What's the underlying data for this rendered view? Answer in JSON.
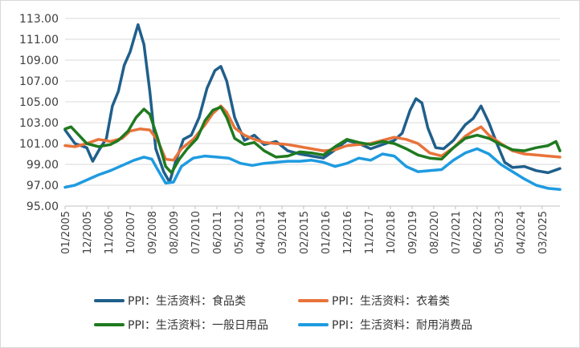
{
  "chart_data": {
    "type": "line",
    "title": "",
    "xlabel": "",
    "ylabel": "",
    "ylim": [
      95,
      113
    ],
    "yticks": [
      "113.00",
      "111.00",
      "109.00",
      "107.00",
      "105.00",
      "103.00",
      "101.00",
      "99.00",
      "97.00",
      "95.00"
    ],
    "xticks": [
      "01/2005",
      "12/2005",
      "11/2006",
      "10/2007",
      "09/2008",
      "08/2009",
      "07/2010",
      "06/2011",
      "05/2012",
      "04/2013",
      "03/2014",
      "02/2015",
      "01/2016",
      "12/2016",
      "11/2017",
      "10/2018",
      "09/2019",
      "08/2020",
      "07/2021",
      "06/2022",
      "05/2023",
      "04/2024",
      "03/2025"
    ],
    "x_range": [
      "2005-01",
      "2025-12"
    ],
    "grid": "horizontal",
    "legend_position": "bottom",
    "series": [
      {
        "name": "PPI：生活资料：食品类",
        "color": "#1f5f8b",
        "points": [
          [
            "2005-01",
            102.3
          ],
          [
            "2005-06",
            101.0
          ],
          [
            "2005-12",
            100.6
          ],
          [
            "2006-03",
            99.3
          ],
          [
            "2006-06",
            100.3
          ],
          [
            "2006-10",
            101.5
          ],
          [
            "2007-01",
            104.6
          ],
          [
            "2007-04",
            106.0
          ],
          [
            "2007-07",
            108.5
          ],
          [
            "2007-10",
            109.8
          ],
          [
            "2008-02",
            112.4
          ],
          [
            "2008-05",
            110.5
          ],
          [
            "2008-08",
            106.0
          ],
          [
            "2008-11",
            100.5
          ],
          [
            "2009-03",
            98.3
          ],
          [
            "2009-06",
            97.3
          ],
          [
            "2009-09",
            99.2
          ],
          [
            "2010-01",
            101.4
          ],
          [
            "2010-05",
            101.8
          ],
          [
            "2010-09",
            103.5
          ],
          [
            "2011-01",
            106.3
          ],
          [
            "2011-05",
            108.0
          ],
          [
            "2011-08",
            108.4
          ],
          [
            "2011-11",
            107.0
          ],
          [
            "2012-03",
            103.5
          ],
          [
            "2012-08",
            101.3
          ],
          [
            "2013-01",
            101.8
          ],
          [
            "2013-06",
            100.9
          ],
          [
            "2013-12",
            101.2
          ],
          [
            "2014-06",
            100.3
          ],
          [
            "2014-12",
            100.0
          ],
          [
            "2015-06",
            99.8
          ],
          [
            "2015-12",
            99.6
          ],
          [
            "2016-06",
            100.4
          ],
          [
            "2016-12",
            101.3
          ],
          [
            "2017-06",
            101.0
          ],
          [
            "2017-12",
            100.5
          ],
          [
            "2018-06",
            100.9
          ],
          [
            "2018-12",
            101.3
          ],
          [
            "2019-04",
            102.0
          ],
          [
            "2019-08",
            104.2
          ],
          [
            "2019-11",
            105.3
          ],
          [
            "2020-02",
            104.9
          ],
          [
            "2020-05",
            102.5
          ],
          [
            "2020-09",
            100.6
          ],
          [
            "2021-01",
            100.5
          ],
          [
            "2021-06",
            101.3
          ],
          [
            "2021-12",
            102.8
          ],
          [
            "2022-04",
            103.4
          ],
          [
            "2022-08",
            104.6
          ],
          [
            "2022-12",
            103.0
          ],
          [
            "2023-04",
            101.0
          ],
          [
            "2023-08",
            99.2
          ],
          [
            "2023-12",
            98.7
          ],
          [
            "2024-06",
            98.8
          ],
          [
            "2024-12",
            98.4
          ],
          [
            "2025-06",
            98.2
          ],
          [
            "2025-12",
            98.6
          ]
        ]
      },
      {
        "name": "PPI：生活资料：衣着类",
        "color": "#e8733a",
        "points": [
          [
            "2005-01",
            100.8
          ],
          [
            "2005-06",
            100.7
          ],
          [
            "2005-12",
            101.0
          ],
          [
            "2006-06",
            101.4
          ],
          [
            "2006-12",
            101.2
          ],
          [
            "2007-06",
            101.5
          ],
          [
            "2007-10",
            102.2
          ],
          [
            "2008-03",
            102.4
          ],
          [
            "2008-08",
            102.3
          ],
          [
            "2008-12",
            101.3
          ],
          [
            "2009-04",
            99.5
          ],
          [
            "2009-08",
            99.4
          ],
          [
            "2009-12",
            100.5
          ],
          [
            "2010-06",
            101.4
          ],
          [
            "2010-12",
            102.8
          ],
          [
            "2011-04",
            103.9
          ],
          [
            "2011-08",
            104.6
          ],
          [
            "2011-11",
            104.0
          ],
          [
            "2012-03",
            102.5
          ],
          [
            "2012-08",
            101.8
          ],
          [
            "2013-01",
            101.4
          ],
          [
            "2013-06",
            101.1
          ],
          [
            "2013-12",
            101.0
          ],
          [
            "2014-06",
            100.9
          ],
          [
            "2014-12",
            100.7
          ],
          [
            "2015-06",
            100.5
          ],
          [
            "2015-12",
            100.3
          ],
          [
            "2016-06",
            100.4
          ],
          [
            "2016-12",
            100.8
          ],
          [
            "2017-06",
            100.9
          ],
          [
            "2017-12",
            101.0
          ],
          [
            "2018-06",
            101.3
          ],
          [
            "2018-12",
            101.6
          ],
          [
            "2019-06",
            101.4
          ],
          [
            "2019-12",
            101.0
          ],
          [
            "2020-06",
            100.1
          ],
          [
            "2020-12",
            99.8
          ],
          [
            "2021-06",
            100.6
          ],
          [
            "2021-12",
            101.7
          ],
          [
            "2022-04",
            102.2
          ],
          [
            "2022-08",
            102.6
          ],
          [
            "2022-12",
            101.8
          ],
          [
            "2023-06",
            101.0
          ],
          [
            "2023-12",
            100.3
          ],
          [
            "2024-06",
            100.0
          ],
          [
            "2024-12",
            99.9
          ],
          [
            "2025-06",
            99.8
          ],
          [
            "2025-12",
            99.7
          ]
        ]
      },
      {
        "name": "PPI：生活资料：一般日用品",
        "color": "#1f7a1f",
        "points": [
          [
            "2005-01",
            102.4
          ],
          [
            "2005-04",
            102.6
          ],
          [
            "2005-08",
            101.8
          ],
          [
            "2005-12",
            101.0
          ],
          [
            "2006-06",
            100.7
          ],
          [
            "2006-12",
            100.9
          ],
          [
            "2007-04",
            101.3
          ],
          [
            "2007-09",
            102.2
          ],
          [
            "2008-01",
            103.5
          ],
          [
            "2008-05",
            104.3
          ],
          [
            "2008-08",
            103.8
          ],
          [
            "2008-12",
            101.5
          ],
          [
            "2009-04",
            98.8
          ],
          [
            "2009-07",
            98.2
          ],
          [
            "2009-11",
            99.5
          ],
          [
            "2010-03",
            100.5
          ],
          [
            "2010-08",
            101.5
          ],
          [
            "2010-12",
            103.2
          ],
          [
            "2011-04",
            104.2
          ],
          [
            "2011-08",
            104.5
          ],
          [
            "2011-11",
            103.5
          ],
          [
            "2012-03",
            101.5
          ],
          [
            "2012-08",
            100.9
          ],
          [
            "2013-01",
            101.1
          ],
          [
            "2013-06",
            100.3
          ],
          [
            "2013-12",
            99.7
          ],
          [
            "2014-06",
            99.8
          ],
          [
            "2014-12",
            100.2
          ],
          [
            "2015-06",
            100.1
          ],
          [
            "2015-12",
            99.9
          ],
          [
            "2016-06",
            100.7
          ],
          [
            "2016-12",
            101.4
          ],
          [
            "2017-06",
            101.1
          ],
          [
            "2017-12",
            100.9
          ],
          [
            "2018-06",
            101.2
          ],
          [
            "2018-12",
            101.0
          ],
          [
            "2019-06",
            100.5
          ],
          [
            "2019-12",
            99.9
          ],
          [
            "2020-06",
            99.6
          ],
          [
            "2020-12",
            99.5
          ],
          [
            "2021-06",
            100.6
          ],
          [
            "2021-12",
            101.5
          ],
          [
            "2022-06",
            101.8
          ],
          [
            "2022-12",
            101.5
          ],
          [
            "2023-06",
            100.9
          ],
          [
            "2023-12",
            100.4
          ],
          [
            "2024-06",
            100.3
          ],
          [
            "2024-12",
            100.6
          ],
          [
            "2025-06",
            100.8
          ],
          [
            "2025-10",
            101.2
          ],
          [
            "2025-12",
            100.3
          ]
        ]
      },
      {
        "name": "PPI：生活资料：耐用消费品",
        "color": "#1e9be0",
        "points": [
          [
            "2005-01",
            96.8
          ],
          [
            "2005-06",
            97.0
          ],
          [
            "2005-12",
            97.5
          ],
          [
            "2006-06",
            98.0
          ],
          [
            "2006-12",
            98.4
          ],
          [
            "2007-06",
            98.9
          ],
          [
            "2007-12",
            99.4
          ],
          [
            "2008-05",
            99.7
          ],
          [
            "2008-09",
            99.5
          ],
          [
            "2008-12",
            98.5
          ],
          [
            "2009-04",
            97.2
          ],
          [
            "2009-08",
            97.3
          ],
          [
            "2009-12",
            98.8
          ],
          [
            "2010-06",
            99.6
          ],
          [
            "2010-12",
            99.8
          ],
          [
            "2011-06",
            99.7
          ],
          [
            "2011-12",
            99.6
          ],
          [
            "2012-06",
            99.1
          ],
          [
            "2012-12",
            98.9
          ],
          [
            "2013-06",
            99.1
          ],
          [
            "2013-12",
            99.2
          ],
          [
            "2014-06",
            99.3
          ],
          [
            "2014-12",
            99.3
          ],
          [
            "2015-06",
            99.4
          ],
          [
            "2015-12",
            99.2
          ],
          [
            "2016-06",
            98.8
          ],
          [
            "2016-12",
            99.1
          ],
          [
            "2017-06",
            99.6
          ],
          [
            "2017-12",
            99.4
          ],
          [
            "2018-06",
            100.0
          ],
          [
            "2018-12",
            99.8
          ],
          [
            "2019-06",
            98.8
          ],
          [
            "2019-12",
            98.3
          ],
          [
            "2020-06",
            98.4
          ],
          [
            "2020-12",
            98.5
          ],
          [
            "2021-06",
            99.4
          ],
          [
            "2021-12",
            100.1
          ],
          [
            "2022-06",
            100.5
          ],
          [
            "2022-12",
            100.0
          ],
          [
            "2023-06",
            99.0
          ],
          [
            "2023-12",
            98.3
          ],
          [
            "2024-06",
            97.6
          ],
          [
            "2024-12",
            97.0
          ],
          [
            "2025-06",
            96.7
          ],
          [
            "2025-12",
            96.6
          ]
        ]
      }
    ]
  }
}
